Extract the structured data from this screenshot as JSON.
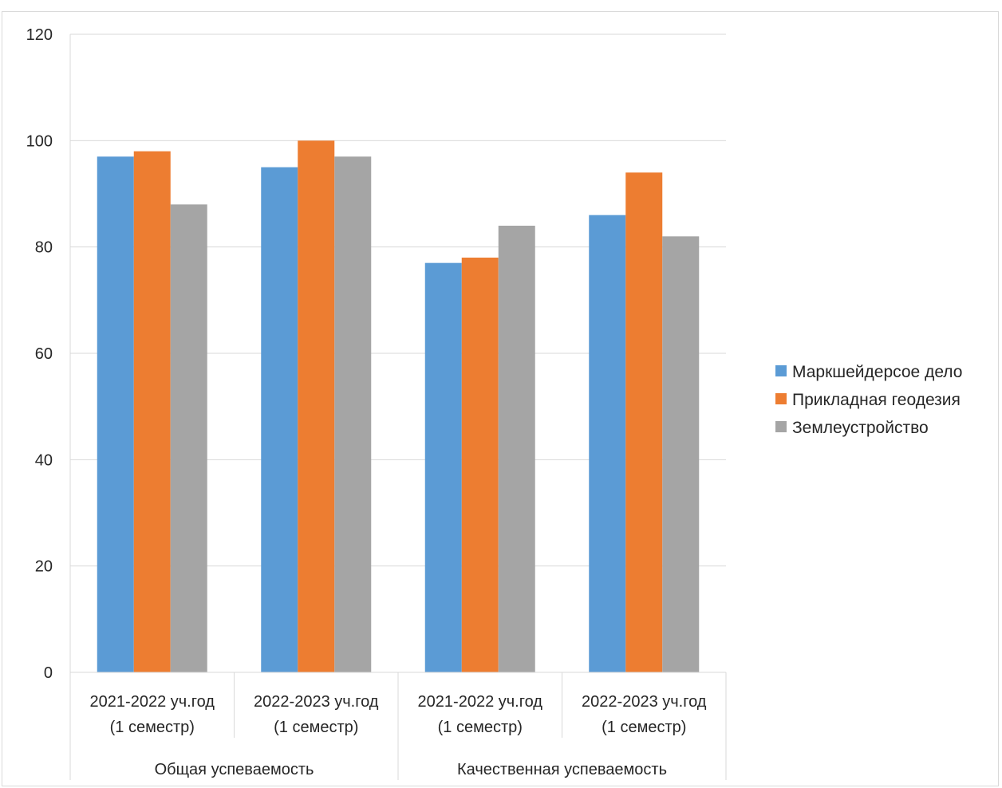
{
  "chart_data": {
    "type": "bar",
    "title": "",
    "xlabel": "",
    "ylabel": "",
    "ylim": [
      0,
      120
    ],
    "yticks": [
      0,
      20,
      40,
      60,
      80,
      100,
      120
    ],
    "grid": true,
    "legend_position": "right",
    "groups": [
      "Общая успеваемость",
      "Качественная успеваемость"
    ],
    "categories": [
      {
        "line1": "2021-2022 уч.год",
        "line2": "(1 семестр)"
      },
      {
        "line1": "2022-2023 уч.год",
        "line2": "(1 семестр)"
      },
      {
        "line1": "2021-2022 уч.год",
        "line2": "(1 семестр)"
      },
      {
        "line1": "2022-2023 уч.год",
        "line2": "(1 семестр)"
      }
    ],
    "series": [
      {
        "name": "Маркшейдерсое дело",
        "color": "#5b9bd5",
        "values": [
          97,
          95,
          77,
          86
        ]
      },
      {
        "name": "Прикладная геодезия",
        "color": "#ed7d31",
        "values": [
          98,
          100,
          78,
          94
        ]
      },
      {
        "name": "Землеустройство",
        "color": "#a5a5a5",
        "values": [
          88,
          97,
          84,
          82
        ]
      }
    ]
  }
}
